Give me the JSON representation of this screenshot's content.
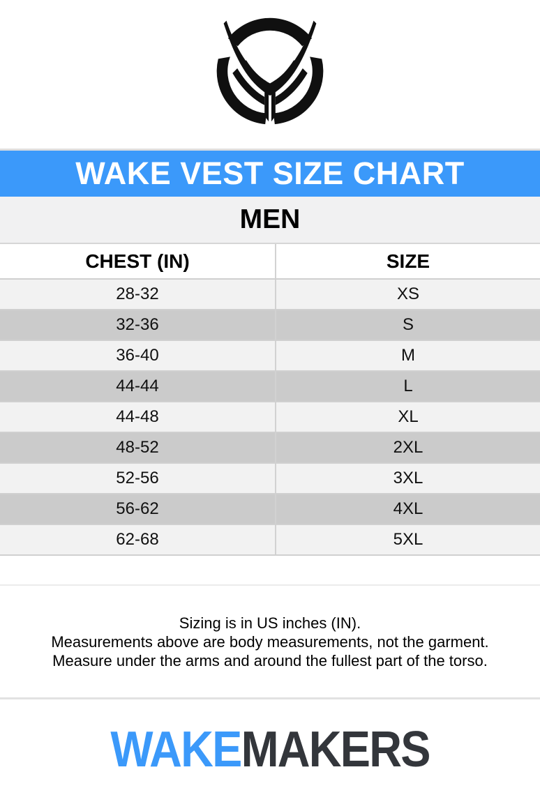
{
  "banner": {
    "title": "WAKE VEST SIZE CHART",
    "bg": "#3b99fa",
    "fg": "#ffffff"
  },
  "gender_header": "MEN",
  "size_table": {
    "columns": [
      "CHEST (IN)",
      "SIZE"
    ],
    "rows": [
      [
        "28-32",
        "XS"
      ],
      [
        "32-36",
        "S"
      ],
      [
        "36-40",
        "M"
      ],
      [
        "44-44",
        "L"
      ],
      [
        "44-48",
        "XL"
      ],
      [
        "48-52",
        "2XL"
      ],
      [
        "52-56",
        "3XL"
      ],
      [
        "56-62",
        "4XL"
      ],
      [
        "62-68",
        "5XL"
      ]
    ],
    "row_light": "#f2f2f2",
    "row_dark": "#cbcbcb"
  },
  "notes": [
    "Sizing is in US inches (IN).",
    "Measurements above are body measurements, not the garment.",
    "Measure under the arms and around the fullest part of the torso."
  ],
  "brand": {
    "top_logo": "ho-sports-emblem",
    "footer": {
      "wake": "WAKE",
      "makers": "MAKERS",
      "wake_color": "#3b99fa",
      "makers_color": "#33363b"
    }
  }
}
